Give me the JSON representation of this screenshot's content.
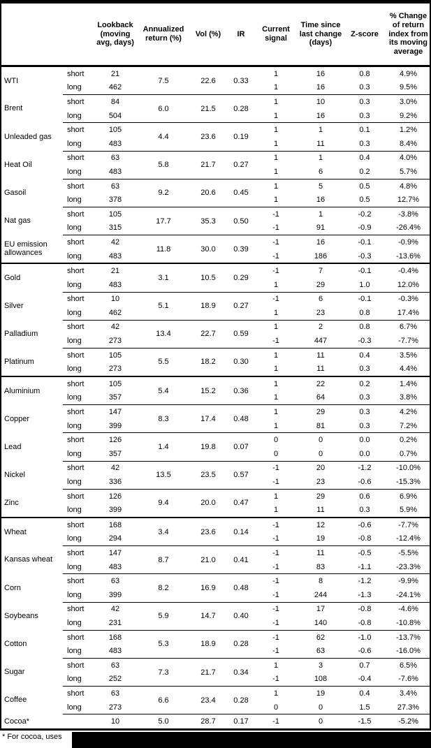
{
  "header": {
    "columns": [
      "Lookback (moving avg, days)",
      "Annualized return (%)",
      "Vol (%)",
      "IR",
      "Current signal",
      "Time since last change (days)",
      "Z-score",
      "% Change of return index from its moving average"
    ]
  },
  "groups": [
    {
      "commodities": [
        {
          "name": "WTI",
          "annualized_return": "7.5",
          "vol": "22.6",
          "ir": "0.33",
          "rows": [
            {
              "horizon": "short",
              "lookback": "21",
              "signal": "1",
              "time_since": "16",
              "z_score": "0.8",
              "pct_change": "4.9%"
            },
            {
              "horizon": "long",
              "lookback": "462",
              "signal": "1",
              "time_since": "16",
              "z_score": "0.3",
              "pct_change": "9.5%"
            }
          ]
        },
        {
          "name": "Brent",
          "annualized_return": "6.0",
          "vol": "21.5",
          "ir": "0.28",
          "rows": [
            {
              "horizon": "short",
              "lookback": "84",
              "signal": "1",
              "time_since": "10",
              "z_score": "0.3",
              "pct_change": "3.0%"
            },
            {
              "horizon": "long",
              "lookback": "504",
              "signal": "1",
              "time_since": "16",
              "z_score": "0.3",
              "pct_change": "9.2%"
            }
          ]
        },
        {
          "name": "Unleaded gas",
          "annualized_return": "4.4",
          "vol": "23.6",
          "ir": "0.19",
          "rows": [
            {
              "horizon": "short",
              "lookback": "105",
              "signal": "1",
              "time_since": "1",
              "z_score": "0.1",
              "pct_change": "1.2%"
            },
            {
              "horizon": "long",
              "lookback": "483",
              "signal": "1",
              "time_since": "11",
              "z_score": "0.3",
              "pct_change": "8.4%"
            }
          ]
        },
        {
          "name": "Heat Oil",
          "annualized_return": "5.8",
          "vol": "21.7",
          "ir": "0.27",
          "rows": [
            {
              "horizon": "short",
              "lookback": "63",
              "signal": "1",
              "time_since": "1",
              "z_score": "0.4",
              "pct_change": "4.0%"
            },
            {
              "horizon": "long",
              "lookback": "483",
              "signal": "1",
              "time_since": "6",
              "z_score": "0.2",
              "pct_change": "5.7%"
            }
          ]
        },
        {
          "name": "Gasoil",
          "annualized_return": "9.2",
          "vol": "20.6",
          "ir": "0.45",
          "rows": [
            {
              "horizon": "short",
              "lookback": "63",
              "signal": "1",
              "time_since": "5",
              "z_score": "0.5",
              "pct_change": "4.8%"
            },
            {
              "horizon": "long",
              "lookback": "378",
              "signal": "1",
              "time_since": "16",
              "z_score": "0.5",
              "pct_change": "12.7%"
            }
          ]
        },
        {
          "name": "Nat gas",
          "annualized_return": "17.7",
          "vol": "35.3",
          "ir": "0.50",
          "rows": [
            {
              "horizon": "short",
              "lookback": "105",
              "signal": "-1",
              "time_since": "1",
              "z_score": "-0.2",
              "pct_change": "-3.8%"
            },
            {
              "horizon": "long",
              "lookback": "315",
              "signal": "-1",
              "time_since": "91",
              "z_score": "-0.9",
              "pct_change": "-26.4%"
            }
          ]
        },
        {
          "name": "EU emission allowances",
          "annualized_return": "11.8",
          "vol": "30.0",
          "ir": "0.39",
          "rows": [
            {
              "horizon": "short",
              "lookback": "42",
              "signal": "-1",
              "time_since": "16",
              "z_score": "-0.1",
              "pct_change": "-0.9%"
            },
            {
              "horizon": "long",
              "lookback": "483",
              "signal": "-1",
              "time_since": "186",
              "z_score": "-0.3",
              "pct_change": "-13.6%"
            }
          ]
        }
      ]
    },
    {
      "commodities": [
        {
          "name": "Gold",
          "annualized_return": "3.1",
          "vol": "10.5",
          "ir": "0.29",
          "rows": [
            {
              "horizon": "short",
              "lookback": "21",
              "signal": "-1",
              "time_since": "7",
              "z_score": "-0.1",
              "pct_change": "-0.4%"
            },
            {
              "horizon": "long",
              "lookback": "483",
              "signal": "1",
              "time_since": "29",
              "z_score": "1.0",
              "pct_change": "12.0%"
            }
          ]
        },
        {
          "name": "Silver",
          "annualized_return": "5.1",
          "vol": "18.9",
          "ir": "0.27",
          "rows": [
            {
              "horizon": "short",
              "lookback": "10",
              "signal": "-1",
              "time_since": "6",
              "z_score": "-0.1",
              "pct_change": "-0.3%"
            },
            {
              "horizon": "long",
              "lookback": "462",
              "signal": "1",
              "time_since": "23",
              "z_score": "0.8",
              "pct_change": "17.4%"
            }
          ]
        },
        {
          "name": "Palladium",
          "annualized_return": "13.4",
          "vol": "22.7",
          "ir": "0.59",
          "rows": [
            {
              "horizon": "short",
              "lookback": "42",
              "signal": "1",
              "time_since": "2",
              "z_score": "0.8",
              "pct_change": "6.7%"
            },
            {
              "horizon": "long",
              "lookback": "273",
              "signal": "-1",
              "time_since": "447",
              "z_score": "-0.3",
              "pct_change": "-7.7%"
            }
          ]
        },
        {
          "name": "Platinum",
          "annualized_return": "5.5",
          "vol": "18.2",
          "ir": "0.30",
          "rows": [
            {
              "horizon": "short",
              "lookback": "105",
              "signal": "1",
              "time_since": "11",
              "z_score": "0.4",
              "pct_change": "3.5%"
            },
            {
              "horizon": "long",
              "lookback": "273",
              "signal": "1",
              "time_since": "11",
              "z_score": "0.3",
              "pct_change": "4.4%"
            }
          ]
        }
      ]
    },
    {
      "commodities": [
        {
          "name": "Aluminium",
          "annualized_return": "5.4",
          "vol": "15.2",
          "ir": "0.36",
          "rows": [
            {
              "horizon": "short",
              "lookback": "105",
              "signal": "1",
              "time_since": "22",
              "z_score": "0.2",
              "pct_change": "1.4%"
            },
            {
              "horizon": "long",
              "lookback": "357",
              "signal": "1",
              "time_since": "64",
              "z_score": "0.3",
              "pct_change": "3.8%"
            }
          ]
        },
        {
          "name": "Copper",
          "annualized_return": "8.3",
          "vol": "17.4",
          "ir": "0.48",
          "rows": [
            {
              "horizon": "short",
              "lookback": "147",
              "signal": "1",
              "time_since": "29",
              "z_score": "0.3",
              "pct_change": "4.2%"
            },
            {
              "horizon": "long",
              "lookback": "399",
              "signal": "1",
              "time_since": "81",
              "z_score": "0.3",
              "pct_change": "7.2%"
            }
          ]
        },
        {
          "name": "Lead",
          "annualized_return": "1.4",
          "vol": "19.8",
          "ir": "0.07",
          "rows": [
            {
              "horizon": "short",
              "lookback": "126",
              "signal": "0",
              "time_since": "0",
              "z_score": "0.0",
              "pct_change": "0.2%"
            },
            {
              "horizon": "long",
              "lookback": "357",
              "signal": "0",
              "time_since": "0",
              "z_score": "0.0",
              "pct_change": "0.7%"
            }
          ]
        },
        {
          "name": "Nickel",
          "annualized_return": "13.5",
          "vol": "23.5",
          "ir": "0.57",
          "rows": [
            {
              "horizon": "short",
              "lookback": "42",
              "signal": "-1",
              "time_since": "20",
              "z_score": "-1.2",
              "pct_change": "-10.0%"
            },
            {
              "horizon": "long",
              "lookback": "336",
              "signal": "-1",
              "time_since": "23",
              "z_score": "-0.6",
              "pct_change": "-15.3%"
            }
          ]
        },
        {
          "name": "Zinc",
          "annualized_return": "9.4",
          "vol": "20.0",
          "ir": "0.47",
          "rows": [
            {
              "horizon": "short",
              "lookback": "126",
              "signal": "1",
              "time_since": "29",
              "z_score": "0.6",
              "pct_change": "6.9%"
            },
            {
              "horizon": "long",
              "lookback": "399",
              "signal": "1",
              "time_since": "11",
              "z_score": "0.3",
              "pct_change": "5.9%"
            }
          ]
        }
      ]
    },
    {
      "commodities": [
        {
          "name": "Wheat",
          "annualized_return": "3.4",
          "vol": "23.6",
          "ir": "0.14",
          "rows": [
            {
              "horizon": "short",
              "lookback": "168",
              "signal": "-1",
              "time_since": "12",
              "z_score": "-0.6",
              "pct_change": "-7.7%"
            },
            {
              "horizon": "long",
              "lookback": "294",
              "signal": "-1",
              "time_since": "19",
              "z_score": "-0.8",
              "pct_change": "-12.4%"
            }
          ]
        },
        {
          "name": "Kansas wheat",
          "annualized_return": "8.7",
          "vol": "21.0",
          "ir": "0.41",
          "rows": [
            {
              "horizon": "short",
              "lookback": "147",
              "signal": "-1",
              "time_since": "11",
              "z_score": "-0.5",
              "pct_change": "-5.5%"
            },
            {
              "horizon": "long",
              "lookback": "483",
              "signal": "-1",
              "time_since": "83",
              "z_score": "-1.1",
              "pct_change": "-23.3%"
            }
          ]
        },
        {
          "name": "Corn",
          "annualized_return": "8.2",
          "vol": "16.9",
          "ir": "0.48",
          "rows": [
            {
              "horizon": "short",
              "lookback": "63",
              "signal": "-1",
              "time_since": "8",
              "z_score": "-1.2",
              "pct_change": "-9.9%"
            },
            {
              "horizon": "long",
              "lookback": "399",
              "signal": "-1",
              "time_since": "244",
              "z_score": "-1.3",
              "pct_change": "-24.1%"
            }
          ]
        },
        {
          "name": "Soybeans",
          "annualized_return": "5.9",
          "vol": "14.7",
          "ir": "0.40",
          "rows": [
            {
              "horizon": "short",
              "lookback": "42",
              "signal": "-1",
              "time_since": "17",
              "z_score": "-0.8",
              "pct_change": "-4.6%"
            },
            {
              "horizon": "long",
              "lookback": "231",
              "signal": "-1",
              "time_since": "140",
              "z_score": "-0.8",
              "pct_change": "-10.8%"
            }
          ]
        },
        {
          "name": "Cotton",
          "annualized_return": "5.3",
          "vol": "18.9",
          "ir": "0.28",
          "rows": [
            {
              "horizon": "short",
              "lookback": "168",
              "signal": "-1",
              "time_since": "62",
              "z_score": "-1.0",
              "pct_change": "-13.7%"
            },
            {
              "horizon": "long",
              "lookback": "483",
              "signal": "-1",
              "time_since": "63",
              "z_score": "-0.6",
              "pct_change": "-16.0%"
            }
          ]
        },
        {
          "name": "Sugar",
          "annualized_return": "7.3",
          "vol": "21.7",
          "ir": "0.34",
          "rows": [
            {
              "horizon": "short",
              "lookback": "63",
              "signal": "1",
              "time_since": "3",
              "z_score": "0.7",
              "pct_change": "6.5%"
            },
            {
              "horizon": "long",
              "lookback": "252",
              "signal": "-1",
              "time_since": "108",
              "z_score": "-0.4",
              "pct_change": "-7.6%"
            }
          ]
        },
        {
          "name": "Coffee",
          "annualized_return": "6.6",
          "vol": "23.4",
          "ir": "0.28",
          "rows": [
            {
              "horizon": "short",
              "lookback": "63",
              "signal": "1",
              "time_since": "19",
              "z_score": "0.4",
              "pct_change": "3.4%"
            },
            {
              "horizon": "long",
              "lookback": "273",
              "signal": "0",
              "time_since": "0",
              "z_score": "1.5",
              "pct_change": "27.3%"
            }
          ]
        },
        {
          "name": "Cocoa*",
          "annualized_return": "5.0",
          "vol": "28.7",
          "ir": "0.17",
          "rows": [
            {
              "horizon": "",
              "lookback": "10",
              "signal": "-1",
              "time_since": "0",
              "z_score": "-1.5",
              "pct_change": "-5.2%"
            }
          ]
        }
      ]
    }
  ],
  "footnote": {
    "text": "* For cocoa, uses"
  }
}
